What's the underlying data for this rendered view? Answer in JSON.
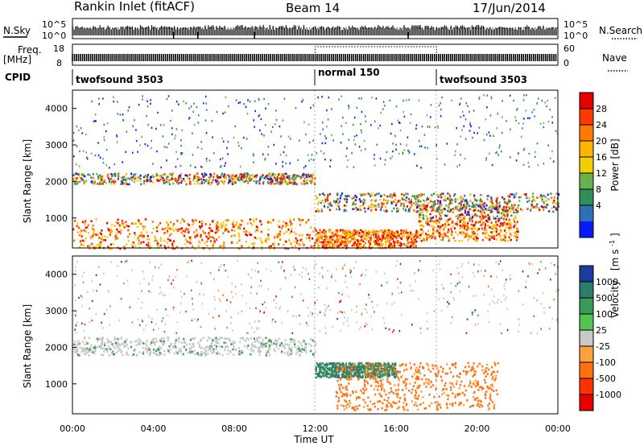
{
  "header": {
    "station": "Rankin Inlet (fitACF)",
    "beam": "Beam 14",
    "date": "17/Jun/2014"
  },
  "top_panels": {
    "nsky_label": "N.Sky",
    "nsky_ticks": [
      "10^5",
      "10^0"
    ],
    "nsearch_label": "N.Search",
    "nsearch_ticks": [
      "10^5",
      "10^0"
    ],
    "freq_label_1": "Freq.",
    "freq_label_2": "[MHz]",
    "freq_ticks": [
      "18",
      "8"
    ],
    "nave_label": "Nave",
    "nave_ticks": [
      "60",
      "0"
    ],
    "cpid_label": "CPID",
    "cpid_segments": [
      {
        "name": "twofsound 3503",
        "start_h": 0,
        "end_h": 12
      },
      {
        "name": "normal 150",
        "start_h": 12,
        "end_h": 18
      },
      {
        "name": "twofsound 3503",
        "start_h": 18,
        "end_h": 24
      }
    ]
  },
  "axes": {
    "xlabel": "Time UT",
    "ylabel": "Slant Range [km]",
    "x_tick_labels": [
      "00:00",
      "04:00",
      "08:00",
      "12:00",
      "16:00",
      "20:00",
      "00:00"
    ]
  },
  "colorbars": {
    "power_label": "Power [dB]",
    "power_ticks": [
      "28",
      "24",
      "20",
      "16",
      "12",
      "8",
      "4"
    ],
    "power_colors": [
      "#e60000",
      "#ff3a00",
      "#ff7a00",
      "#ffb400",
      "#f0d000",
      "#6ab04c",
      "#2f8f5a",
      "#2f6fb5",
      "#0a1aff"
    ],
    "velocity_label_1": "Velocity",
    "velocity_label_2": "[m s",
    "velocity_label_3": "-1",
    "velocity_label_4": "]",
    "velocity_ticks": [
      "1000",
      "500",
      "100",
      "25",
      "-25",
      "-100",
      "-500",
      "-1000"
    ],
    "velocity_colors": [
      "#1a3c9e",
      "#2e7d6a",
      "#3a9a5a",
      "#55c255",
      "#c8c8c8",
      "#ffa040",
      "#ff7010",
      "#ff3000",
      "#e80000"
    ]
  },
  "chart_data": [
    {
      "type": "heatmap",
      "title": "Power",
      "xlabel": "Time UT",
      "ylabel": "Slant Range [km]",
      "xlim": [
        0,
        24
      ],
      "ylim": [
        180,
        4500
      ],
      "y_ticks": [
        1000,
        2000,
        3000,
        4000
      ],
      "colorbar": {
        "label": "Power [dB]",
        "range": [
          0,
          30
        ],
        "ticks": [
          4,
          8,
          12,
          16,
          20,
          24,
          28
        ]
      },
      "bands": [
        {
          "t": [
            0,
            12
          ],
          "r": [
            1950,
            2250
          ],
          "level": "medium"
        },
        {
          "t": [
            0,
            12
          ],
          "r": [
            180,
            1000
          ],
          "level": "high"
        },
        {
          "t": [
            12,
            24
          ],
          "r": [
            1200,
            1700
          ],
          "level": "high"
        },
        {
          "t": [
            12,
            17
          ],
          "r": [
            200,
            700
          ],
          "level": "high"
        },
        {
          "t": [
            17,
            22
          ],
          "r": [
            400,
            1400
          ],
          "level": "high"
        }
      ]
    },
    {
      "type": "heatmap",
      "title": "Velocity",
      "xlabel": "Time UT",
      "ylabel": "Slant Range [km]",
      "xlim": [
        0,
        24
      ],
      "ylim": [
        180,
        4500
      ],
      "y_ticks": [
        1000,
        2000,
        3000,
        4000
      ],
      "colorbar": {
        "label": "Velocity [m s-1]",
        "ticks": [
          1000,
          500,
          100,
          25,
          -25,
          -100,
          -500,
          -1000
        ]
      },
      "bands": [
        {
          "t": [
            0,
            12
          ],
          "r": [
            1800,
            2300
          ],
          "level": "near zero (grey)"
        },
        {
          "t": [
            12,
            16
          ],
          "r": [
            1200,
            1600
          ],
          "level": "positive (green)"
        },
        {
          "t": [
            13,
            21
          ],
          "r": [
            300,
            1600
          ],
          "level": "negative (orange)"
        }
      ]
    }
  ]
}
